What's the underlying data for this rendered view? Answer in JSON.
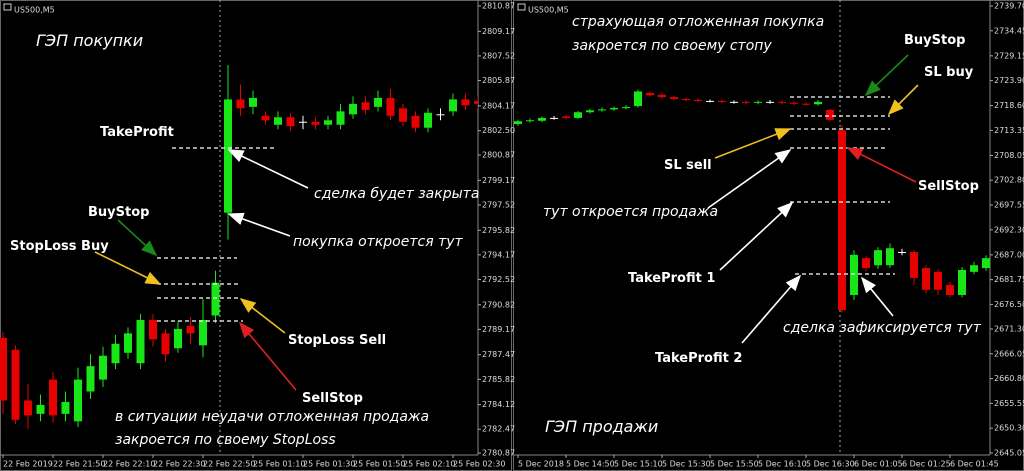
{
  "chart_data": [
    {
      "type": "candlestick",
      "symbol": "US500,M5",
      "title": "ГЭП покупки",
      "categories": [
        "22 Feb 2019",
        null,
        null,
        null,
        "22 Feb 21:50",
        null,
        null,
        null,
        "22 Feb 22:10",
        null,
        null,
        null,
        "22 Feb 22:30",
        null,
        null,
        null,
        "22 Feb 22:50",
        null,
        null,
        null,
        "25 Feb 01:10",
        null,
        null,
        null,
        "25 Feb 01:30",
        null,
        null,
        null,
        "25 Feb 01:50",
        null,
        null,
        null,
        "25 Feb 02:10",
        null,
        null,
        null,
        "25 Feb 02:30",
        null,
        null,
        null
      ],
      "open": [
        2788.6,
        2787.8,
        2784.4,
        2783.5,
        2785.8,
        2783.5,
        2783.0,
        2785.0,
        2785.8,
        2786.9,
        2787.6,
        2786.9,
        2789.8,
        2788.9,
        2787.9,
        2789.4,
        2788.1,
        2790.1,
        2797.0,
        2804.6,
        2804.1,
        2803.5,
        2802.9,
        2803.4,
        2803.1,
        2803.1,
        2802.9,
        2802.9,
        2803.6,
        2804.4,
        2804.1,
        2804.7,
        2804.0,
        2803.5,
        2802.7,
        2803.6,
        2803.8,
        2804.6,
        2804.5,
        2804.3
      ],
      "high": [
        2789.0,
        2788.1,
        2785.5,
        2784.8,
        2786.3,
        2785.0,
        2786.6,
        2787.5,
        2788.0,
        2788.8,
        2789.3,
        2790.2,
        2790.2,
        2789.2,
        2789.7,
        2790.0,
        2791.2,
        2793.1,
        2806.9,
        2805.6,
        2805.2,
        2803.8,
        2803.8,
        2803.7,
        2803.5,
        2803.4,
        2803.5,
        2804.3,
        2804.8,
        2804.8,
        2805.2,
        2805.3,
        2804.3,
        2803.8,
        2804.0,
        2804.0,
        2805.0,
        2805.0,
        2804.8,
        2804.8
      ],
      "low": [
        2783.5,
        2782.8,
        2782.5,
        2783.0,
        2782.9,
        2783.0,
        2782.6,
        2784.5,
        2785.3,
        2786.5,
        2787.2,
        2786.5,
        2788.0,
        2787.0,
        2787.6,
        2788.2,
        2787.3,
        2789.6,
        2795.2,
        2803.5,
        2803.6,
        2802.9,
        2802.6,
        2802.5,
        2802.6,
        2802.6,
        2802.6,
        2802.6,
        2803.3,
        2803.6,
        2803.8,
        2803.2,
        2802.8,
        2802.4,
        2802.4,
        2803.2,
        2803.5,
        2803.9,
        2804.0,
        2804.0
      ],
      "close": [
        2784.4,
        2783.1,
        2783.4,
        2784.1,
        2783.4,
        2784.3,
        2785.8,
        2786.7,
        2787.4,
        2788.2,
        2788.9,
        2789.8,
        2788.5,
        2787.5,
        2789.2,
        2788.9,
        2789.8,
        2792.3,
        2804.6,
        2804.0,
        2804.7,
        2803.2,
        2803.4,
        2802.8,
        2803.1,
        2802.9,
        2803.2,
        2803.8,
        2804.3,
        2803.9,
        2804.7,
        2803.5,
        2803.1,
        2802.7,
        2803.7,
        2803.6,
        2804.6,
        2804.2,
        2804.3,
        2804.5
      ],
      "up_color": "#19e619",
      "down_color": "#e60000",
      "doji_color": "#ffffff",
      "ylim": [
        2780.74,
        2811.27
      ],
      "yticks": [
        2810.87,
        2809.17,
        2807.52,
        2805.87,
        2804.17,
        {
          "value": 2802.5,
          "label": "2802.50"
        },
        2800.87,
        2799.17,
        2797.52,
        2795.82,
        2794.17,
        2792.52,
        2790.82,
        2789.17,
        2787.47,
        2785.82,
        2784.12,
        2782.47,
        2780.87
      ],
      "annotations": [
        "TakeProfit",
        "сделка будет закрыта",
        "покупка откроется тут",
        "BuyStop",
        "StopLoss Buy",
        "StopLoss Sell",
        "SellStop",
        "в ситуации неудачи отложенная продажа",
        "закроется по своему StopLoss"
      ]
    },
    {
      "type": "candlestick",
      "symbol": "US500,M5",
      "title": "ГЭП продажи",
      "categories": [
        "5 Dec 2018",
        null,
        null,
        null,
        "5 Dec 14:50",
        null,
        null,
        null,
        "5 Dec 15:10",
        null,
        null,
        null,
        "5 Dec 15:30",
        null,
        null,
        null,
        "5 Dec 15:50",
        null,
        null,
        null,
        "5 Dec 16:10",
        null,
        null,
        null,
        "5 Dec 16:30",
        null,
        null,
        null,
        "6 Dec 01:05",
        null,
        null,
        null,
        "6 Dec 01:25",
        null,
        null,
        null,
        "6 Dec 01:45",
        null,
        null,
        null
      ],
      "open": [
        2714.7,
        2715.3,
        2715.4,
        2716.0,
        2716.3,
        2716.0,
        2717.2,
        2717.6,
        2717.8,
        2718.1,
        2718.5,
        2721.3,
        2720.9,
        2720.4,
        2720.0,
        2719.8,
        2719.6,
        2719.6,
        2719.4,
        2719.4,
        2719.2,
        2719.4,
        2719.4,
        2719.2,
        2719.0,
        2718.9,
        2717.7,
        2713.4,
        2678.5,
        2686.3,
        2684.8,
        2684.8,
        2687.6,
        2687.6,
        2684.2,
        2683.4,
        2680.6,
        2678.5,
        2683.4,
        2684.2
      ],
      "high": [
        2715.6,
        2715.9,
        2716.3,
        2716.4,
        2716.6,
        2717.5,
        2717.9,
        2718.2,
        2718.4,
        2718.7,
        2722.0,
        2721.6,
        2721.2,
        2720.7,
        2720.3,
        2720.1,
        2719.9,
        2719.9,
        2719.7,
        2719.7,
        2719.7,
        2719.8,
        2719.7,
        2719.5,
        2719.3,
        2719.8,
        2717.9,
        2714.5,
        2688.0,
        2686.8,
        2688.6,
        2689.4,
        2688.3,
        2688.0,
        2684.8,
        2684.0,
        2681.3,
        2684.4,
        2685.5,
        2686.9
      ],
      "low": [
        2714.3,
        2715.0,
        2715.1,
        2715.6,
        2715.7,
        2715.8,
        2716.9,
        2717.3,
        2717.5,
        2717.8,
        2718.2,
        2720.5,
        2720.1,
        2719.7,
        2719.5,
        2719.3,
        2719.3,
        2719.1,
        2719.0,
        2718.9,
        2718.9,
        2719.0,
        2718.9,
        2718.7,
        2718.6,
        2718.6,
        2715.3,
        2674.8,
        2677.4,
        2683.5,
        2684.0,
        2684.2,
        2686.9,
        2680.6,
        2678.8,
        2678.5,
        2678.0,
        2678.0,
        2682.9,
        2683.6
      ],
      "close": [
        2715.3,
        2715.5,
        2716.0,
        2716.0,
        2716.0,
        2717.2,
        2717.6,
        2717.8,
        2718.1,
        2718.3,
        2721.6,
        2720.8,
        2720.4,
        2720.0,
        2719.8,
        2719.6,
        2719.6,
        2719.4,
        2719.4,
        2719.2,
        2719.4,
        2719.4,
        2719.2,
        2719.0,
        2718.9,
        2719.4,
        2715.6,
        2675.3,
        2687.0,
        2684.2,
        2688.0,
        2688.4,
        2687.6,
        2682.1,
        2679.6,
        2679.6,
        2678.5,
        2683.8,
        2684.8,
        2686.3
      ],
      "up_color": "#19e619",
      "down_color": "#e60000",
      "doji_color": "#ffffff",
      "ylim": [
        2644.61,
        2740.97
      ],
      "yticks": [
        {
          "value": 2739.7,
          "label": "2739.70"
        },
        2734.45,
        2729.15,
        {
          "value": 2723.9,
          "label": "2723.90"
        },
        {
          "value": 2718.6,
          "label": "2718.60"
        },
        2713.35,
        2708.05,
        {
          "value": 2702.8,
          "label": "2702.80"
        },
        2697.55,
        {
          "value": 2692.3,
          "label": "2692.30"
        },
        {
          "value": 2687,
          "label": "2687.00"
        },
        2681.75,
        {
          "value": 2676.5,
          "label": "2676.50"
        },
        {
          "value": 2671.3,
          "label": "2671.30"
        },
        2666.05,
        {
          "value": 2660.8,
          "label": "2660.80"
        },
        2655.55,
        {
          "value": 2650.3,
          "label": "2650.30"
        },
        2645.05
      ],
      "annotations": [
        "страхующая отложенная покупка",
        "закроется по своему стопу",
        "BuyStop",
        "SL buy",
        "SL sell",
        "SellStop",
        "тут откроется продажа",
        "TakeProfit 1",
        "сделка зафиксируется тут",
        "TakeProfit 2"
      ]
    }
  ]
}
